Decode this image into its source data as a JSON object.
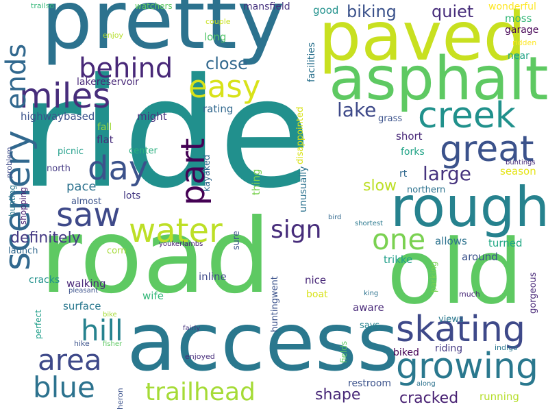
{
  "words": [
    {
      "text": "ride",
      "color": "#21908d"
    },
    {
      "text": "road",
      "color": "#5ec962"
    },
    {
      "text": "access",
      "color": "#2a788e"
    },
    {
      "text": "pretty",
      "color": "#2c728e"
    },
    {
      "text": "paved",
      "color": "#c8e020"
    },
    {
      "text": "asphalt",
      "color": "#5ec962"
    },
    {
      "text": "old",
      "color": "#5ec962"
    },
    {
      "text": "rough",
      "color": "#26828e"
    },
    {
      "text": "growing",
      "color": "#2a788e"
    },
    {
      "text": "skating",
      "color": "#3e4989"
    },
    {
      "text": "scenery",
      "color": "#31688e"
    },
    {
      "text": "creek",
      "color": "#21918c"
    },
    {
      "text": "great",
      "color": "#3b528b"
    },
    {
      "text": "miles",
      "color": "#472d7b"
    },
    {
      "text": "day",
      "color": "#3b528b"
    },
    {
      "text": "saw",
      "color": "#3e4989"
    },
    {
      "text": "water",
      "color": "#bddf26"
    },
    {
      "text": "part",
      "color": "#440154"
    },
    {
      "text": "easy",
      "color": "#d8e219"
    },
    {
      "text": "behind",
      "color": "#482878"
    },
    {
      "text": "ends",
      "color": "#31688e"
    },
    {
      "text": "area",
      "color": "#3e4989"
    },
    {
      "text": "blue",
      "color": "#2c728e"
    },
    {
      "text": "hill",
      "color": "#26828e"
    },
    {
      "text": "one",
      "color": "#7ad151"
    },
    {
      "text": "trailhead",
      "color": "#a5db36"
    },
    {
      "text": "sign",
      "color": "#472d7b"
    },
    {
      "text": "lake",
      "color": "#3e4989"
    },
    {
      "text": "large",
      "color": "#46337e"
    },
    {
      "text": "close",
      "color": "#31688e"
    },
    {
      "text": "biking",
      "color": "#3b528b"
    },
    {
      "text": "quiet",
      "color": "#472d7b"
    },
    {
      "text": "definitely",
      "color": "#443983"
    },
    {
      "text": "slow",
      "color": "#bddf26"
    },
    {
      "text": "pace",
      "color": "#2c728e"
    },
    {
      "text": "shape",
      "color": "#482878"
    },
    {
      "text": "cracked",
      "color": "#482173"
    },
    {
      "text": "mansfield",
      "color": "#46327e"
    },
    {
      "text": "good",
      "color": "#21918c"
    },
    {
      "text": "wonderful",
      "color": "#fde725"
    },
    {
      "text": "moss",
      "color": "#35b779"
    },
    {
      "text": "garage",
      "color": "#440154"
    },
    {
      "text": "ridden",
      "color": "#fde725"
    },
    {
      "text": "near",
      "color": "#20a386"
    },
    {
      "text": "watchers",
      "color": "#5ec962"
    },
    {
      "text": "trailso",
      "color": "#35b779"
    },
    {
      "text": "couple",
      "color": "#c8e020"
    },
    {
      "text": "long",
      "color": "#52c569"
    },
    {
      "text": "enjoy",
      "color": "#b5de2b"
    },
    {
      "text": "lakereservoir",
      "color": "#482878"
    },
    {
      "text": "rating",
      "color": "#31688e"
    },
    {
      "text": "facilities",
      "color": "#2c728e"
    },
    {
      "text": "disappointed",
      "color": "#d8e219"
    },
    {
      "text": "highwaybased",
      "color": "#3b528b"
    },
    {
      "text": "might",
      "color": "#46327e"
    },
    {
      "text": "fall",
      "color": "#a0da39"
    },
    {
      "text": "flat",
      "color": "#472d7b"
    },
    {
      "text": "center",
      "color": "#29af7f"
    },
    {
      "text": "picnic",
      "color": "#1f9e89"
    },
    {
      "text": "north",
      "color": "#443983"
    },
    {
      "text": "almost",
      "color": "#3b528b"
    },
    {
      "text": "lots",
      "color": "#443983"
    },
    {
      "text": "kayaked",
      "color": "#31688e"
    },
    {
      "text": "thing",
      "color": "#7ad151"
    },
    {
      "text": "unusually",
      "color": "#2c728e"
    },
    {
      "text": "short",
      "color": "#482878"
    },
    {
      "text": "grass",
      "color": "#3b528b"
    },
    {
      "text": "forks",
      "color": "#20a386"
    },
    {
      "text": "rt",
      "color": "#31688e"
    },
    {
      "text": "northern",
      "color": "#2c728e"
    },
    {
      "text": "season",
      "color": "#e5e419"
    },
    {
      "text": "buntings",
      "color": "#472d7b"
    },
    {
      "text": "allows",
      "color": "#2c728e"
    },
    {
      "text": "turned",
      "color": "#22a884"
    },
    {
      "text": "around",
      "color": "#3b528b"
    },
    {
      "text": "trikke",
      "color": "#1f9e89"
    },
    {
      "text": "problem",
      "color": "#3e4989"
    },
    {
      "text": "hunting",
      "color": "#2a788e"
    },
    {
      "text": "shopping",
      "color": "#482173"
    },
    {
      "text": "launch",
      "color": "#31688e"
    },
    {
      "text": "corn",
      "color": "#a5db36"
    },
    {
      "text": "sure",
      "color": "#3b528b"
    },
    {
      "text": "bird",
      "color": "#31688e"
    },
    {
      "text": "shortest",
      "color": "#2a788e"
    },
    {
      "text": "youkerlambs",
      "color": "#482173"
    },
    {
      "text": "cracks",
      "color": "#21918c"
    },
    {
      "text": "walking",
      "color": "#482878"
    },
    {
      "text": "pleasant",
      "color": "#3b528b"
    },
    {
      "text": "surface",
      "color": "#2a788e"
    },
    {
      "text": "inline",
      "color": "#3e4989"
    },
    {
      "text": "huntingwent",
      "color": "#3b528b"
    },
    {
      "text": "nice",
      "color": "#482878"
    },
    {
      "text": "aware",
      "color": "#482878"
    },
    {
      "text": "wife",
      "color": "#35b779"
    },
    {
      "text": "boat",
      "color": "#d8e219"
    },
    {
      "text": "parking",
      "color": "#7ad151"
    },
    {
      "text": "gorgeous",
      "color": "#482878"
    },
    {
      "text": "king",
      "color": "#2c728e"
    },
    {
      "text": "much",
      "color": "#482878"
    },
    {
      "text": "perfect",
      "color": "#1f9e89"
    },
    {
      "text": "bike",
      "color": "#a5db36"
    },
    {
      "text": "fairly",
      "color": "#46337e"
    },
    {
      "text": "views",
      "color": "#2a788e"
    },
    {
      "text": "says",
      "color": "#26828e"
    },
    {
      "text": "hike",
      "color": "#3b528b"
    },
    {
      "text": "fisher",
      "color": "#5ec962"
    },
    {
      "text": "enjoyed",
      "color": "#472d7b"
    },
    {
      "text": "fields",
      "color": "#5ec962"
    },
    {
      "text": "biked",
      "color": "#440154"
    },
    {
      "text": "riding",
      "color": "#443983"
    },
    {
      "text": "indigo",
      "color": "#2a788e"
    },
    {
      "text": "heron",
      "color": "#3b528b"
    },
    {
      "text": "restroom",
      "color": "#3b528b"
    },
    {
      "text": "along",
      "color": "#2c728e"
    },
    {
      "text": "running",
      "color": "#b5de2b"
    }
  ]
}
